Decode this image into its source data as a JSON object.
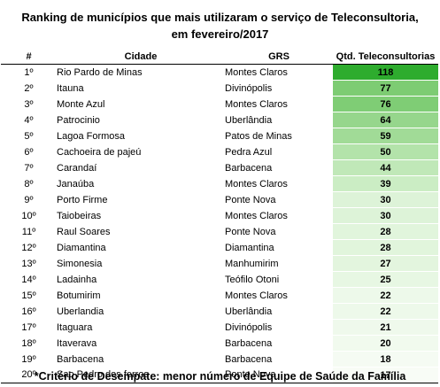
{
  "title": {
    "line1": "Ranking de municípios que mais utilizaram o serviço de Teleconsultoria,",
    "line2": "em fevereiro/2017"
  },
  "table": {
    "headers": {
      "rank": "#",
      "city": "Cidade",
      "grs": "GRS",
      "qty": "Qtd. Teleconsultorias"
    },
    "rows": [
      {
        "rank": "1º",
        "city": "Rio Pardo de Minas",
        "grs": "Montes Claros",
        "qty": "118",
        "color": "#2eac2e"
      },
      {
        "rank": "2º",
        "city": "Itauna",
        "grs": "Divinópolis",
        "qty": "77",
        "color": "#7dcc73"
      },
      {
        "rank": "3º",
        "city": "Monte Azul",
        "grs": "Montes Claros",
        "qty": "76",
        "color": "#7fcd75"
      },
      {
        "rank": "4º",
        "city": "Patrocinio",
        "grs": "Uberlândia",
        "qty": "64",
        "color": "#96d68c"
      },
      {
        "rank": "5º",
        "city": "Lagoa Formosa",
        "grs": "Patos de Minas",
        "qty": "59",
        "color": "#a1db97"
      },
      {
        "rank": "6º",
        "city": "Cachoeira de pajeú",
        "grs": "Pedra Azul",
        "qty": "50",
        "color": "#b3e3aa"
      },
      {
        "rank": "7º",
        "city": "Carandaí",
        "grs": "Barbacena",
        "qty": "44",
        "color": "#c0e8b8"
      },
      {
        "rank": "8º",
        "city": "Janaúba",
        "grs": "Montes Claros",
        "qty": "39",
        "color": "#cbedc4"
      },
      {
        "rank": "9º",
        "city": "Porto Firme",
        "grs": "Ponte Nova",
        "qty": "30",
        "color": "#ddf3d8"
      },
      {
        "rank": "10º",
        "city": "Taiobeiras",
        "grs": "Montes Claros",
        "qty": "30",
        "color": "#ddf3d8"
      },
      {
        "rank": "11º",
        "city": "Raul Soares",
        "grs": "Ponte Nova",
        "qty": "28",
        "color": "#e1f5dc"
      },
      {
        "rank": "12º",
        "city": "Diamantina",
        "grs": "Diamantina",
        "qty": "28",
        "color": "#e1f5dc"
      },
      {
        "rank": "13º",
        "city": "Simonesia",
        "grs": "Manhumirim",
        "qty": "27",
        "color": "#e3f5de"
      },
      {
        "rank": "14º",
        "city": "Ladainha",
        "grs": "Teófilo Otoni",
        "qty": "25",
        "color": "#e7f7e3"
      },
      {
        "rank": "15º",
        "city": "Botumirim",
        "grs": "Montes Claros",
        "qty": "22",
        "color": "#edf9ea"
      },
      {
        "rank": "16º",
        "city": "Uberlandia",
        "grs": "Uberlândia",
        "qty": "22",
        "color": "#edf9ea"
      },
      {
        "rank": "17º",
        "city": "Itaguara",
        "grs": "Divinópolis",
        "qty": "21",
        "color": "#eff9ec"
      },
      {
        "rank": "18º",
        "city": "Itaverava",
        "grs": "Barbacena",
        "qty": "20",
        "color": "#f1faee"
      },
      {
        "rank": "19º",
        "city": "Barbacena",
        "grs": "Barbacena",
        "qty": "18",
        "color": "#f5fbf3"
      },
      {
        "rank": "20º",
        "city": "Sao Pedro dos ferros",
        "grs": "Ponte Nova",
        "qty": "17",
        "color": "#f8fcf6"
      }
    ]
  },
  "footnote": "*Critério de Desempate: menor número de Equipe de Saúde da Família"
}
